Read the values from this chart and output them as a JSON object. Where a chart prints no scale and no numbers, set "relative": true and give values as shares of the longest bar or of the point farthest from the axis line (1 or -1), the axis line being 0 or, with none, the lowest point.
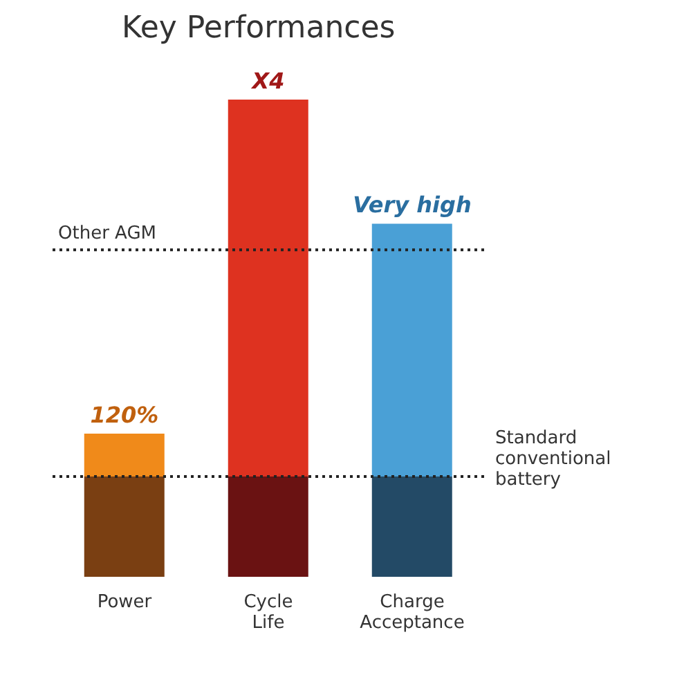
{
  "chart_data": {
    "type": "bar",
    "title": "Key Performances",
    "relative": true,
    "stacked": true,
    "categories": [
      "Power",
      "Cycle Life",
      "Charge Acceptance"
    ],
    "series": [
      {
        "colors": [
          "#7a3f12",
          "#6a1212",
          "#234a66"
        ],
        "values": [
          0.21,
          0.21,
          0.21
        ]
      },
      {
        "colors": [
          "#f08a1a",
          "#de3220",
          "#4aa0d6"
        ],
        "values": [
          0.09,
          0.79,
          0.53
        ]
      }
    ],
    "ref_lines": [
      {
        "axis": "y",
        "value": 0.21,
        "label": "Standard conventional battery",
        "color": "#222222",
        "line_style": "dotted"
      },
      {
        "axis": "y",
        "value": 0.685,
        "label": "Other AGM",
        "color": "#222222",
        "line_style": "dotted"
      }
    ],
    "annotations": [
      {
        "text": "120%",
        "x": "Power",
        "y": 0.3
      },
      {
        "text": "X4",
        "x": "Cycle Life",
        "y": 1
      },
      {
        "text": "Very high",
        "x": "Charge Acceptance",
        "y": 0.74
      }
    ],
    "grid": false,
    "legend": false
  }
}
